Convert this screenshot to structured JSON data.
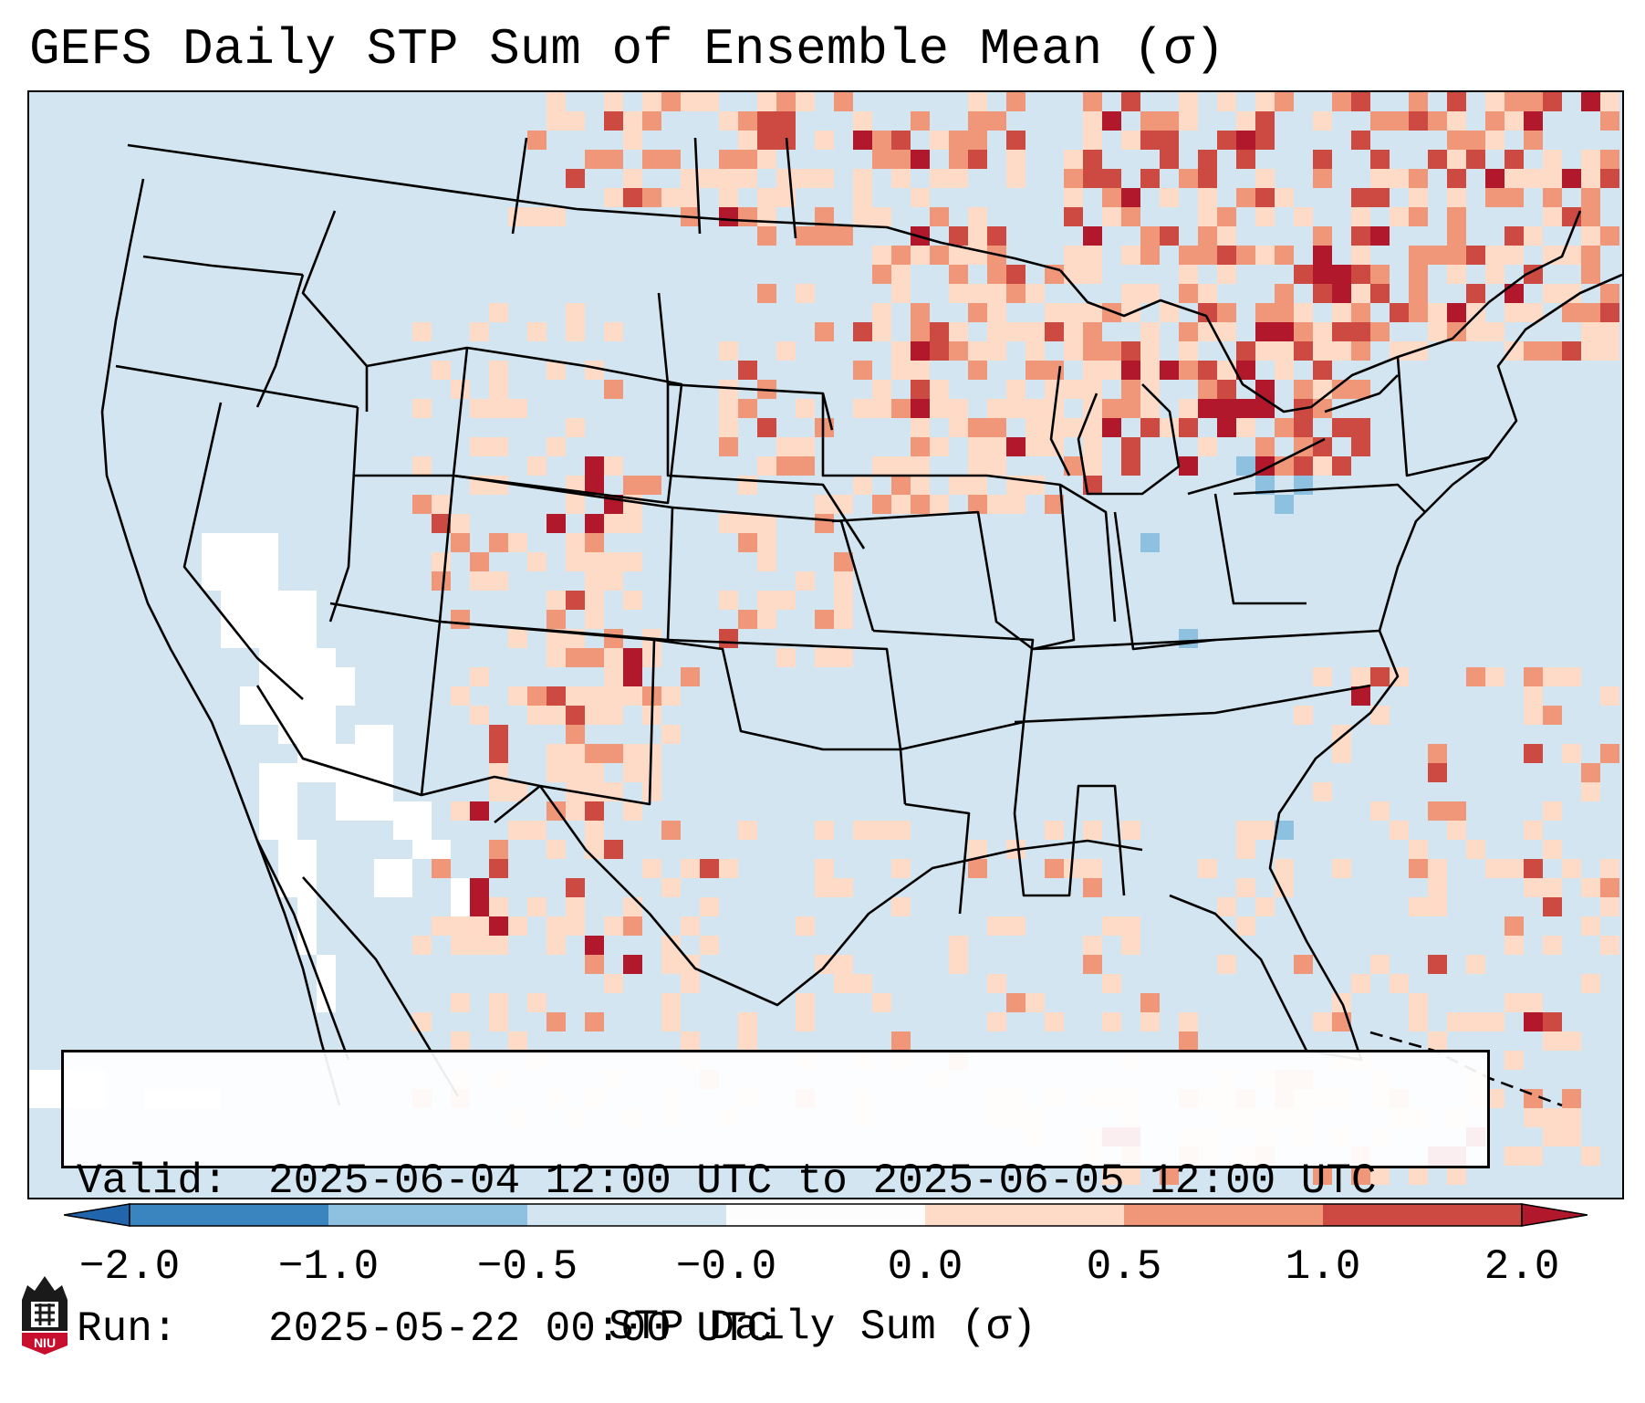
{
  "title": "GEFS Daily STP Sum of Ensemble Mean (σ)",
  "info": {
    "valid_label": "Valid:",
    "valid_value": "2025-06-04 12:00 UTC to 2025-06-05 12:00 UTC",
    "run_label": "Run:",
    "run_value": "2025-05-22 00:00 UTC"
  },
  "colorbar": {
    "label": "STP Daily Sum (σ)",
    "ticks": [
      "−2.0",
      "−1.0",
      "−0.5",
      "−0.0",
      "0.0",
      "0.5",
      "1.0",
      "2.0"
    ],
    "colors": [
      "#3a84c0",
      "#8ec1df",
      "#d2e5f0",
      "#fdfdfd",
      "#fddbc7",
      "#f0977a",
      "#cd4a43"
    ],
    "under_color": "#2166ac",
    "over_color": "#b2182b"
  },
  "logo": {
    "text": "NIU",
    "color": "#c8102e"
  },
  "colors": {
    "background": "#d2e5f0",
    "neutral": "#ffffff",
    "light_red": "#fddbc7",
    "mid_red": "#f0977a",
    "dark_red": "#cd4a43",
    "darkest_red": "#b2182b",
    "light_blue": "#8ec1df"
  }
}
